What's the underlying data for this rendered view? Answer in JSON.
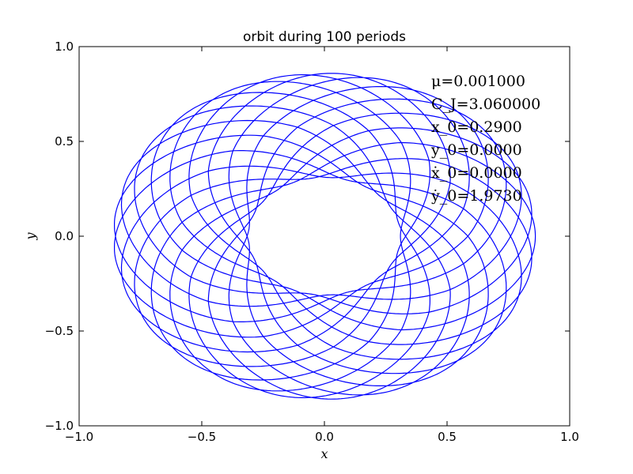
{
  "chart_data": {
    "type": "line",
    "title": "orbit during 100 periods",
    "xlabel": "x",
    "ylabel": "y",
    "xlim": [
      -1.0,
      1.0
    ],
    "ylim": [
      -1.0,
      1.0
    ],
    "xticks": [
      -1.0,
      -0.5,
      0.0,
      0.5,
      1.0
    ],
    "yticks": [
      -1.0,
      -0.5,
      0.0,
      0.5,
      1.0
    ],
    "xtick_labels": [
      "−1.0",
      "−0.5",
      "0.0",
      "0.5",
      "1.0"
    ],
    "ytick_labels": [
      "−1.0",
      "−0.5",
      "0.0",
      "0.5",
      "1.0"
    ],
    "grid": false,
    "line_color": "#0000ff",
    "annotations": [
      "μ=0.001000",
      "C_J=3.060000",
      "x_0=0.2900",
      "y_0=0.0000",
      "ẋ_0=0.0000",
      "ẏ_0=1.9730"
    ],
    "series": [
      {
        "inner_radius": 0.31,
        "outer_radius": 0.86,
        "loops": 70,
        "orbits": 100
      }
    ]
  }
}
